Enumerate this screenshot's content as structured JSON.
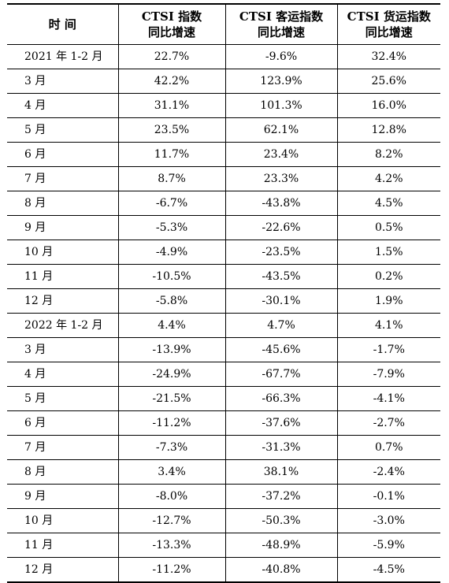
{
  "header": {
    "time_label": "时 间",
    "col1": [
      "CTSI 指数",
      "同比增速"
    ],
    "col2": [
      "CTSI 客运指数",
      "同比增速"
    ],
    "col3": [
      "CTSI 货运指数",
      "同比增速"
    ]
  },
  "rows": [
    [
      "2021 年 1-2 月",
      "22.7%",
      "-9.6%",
      "32.4%"
    ],
    [
      "3 月",
      "42.2%",
      "123.9%",
      "25.6%"
    ],
    [
      "4 月",
      "31.1%",
      "101.3%",
      "16.0%"
    ],
    [
      "5 月",
      "23.5%",
      "62.1%",
      "12.8%"
    ],
    [
      "6 月",
      "11.7%",
      "23.4%",
      "8.2%"
    ],
    [
      "7 月",
      "8.7%",
      "23.3%",
      "4.2%"
    ],
    [
      "8 月",
      "-6.7%",
      "-43.8%",
      "4.5%"
    ],
    [
      "9 月",
      "-5.3%",
      "-22.6%",
      "0.5%"
    ],
    [
      "10 月",
      "-4.9%",
      "-23.5%",
      "1.5%"
    ],
    [
      "11 月",
      "-10.5%",
      "-43.5%",
      "0.2%"
    ],
    [
      "12 月",
      "-5.8%",
      "-30.1%",
      "1.9%"
    ],
    [
      "2022 年 1-2 月",
      "4.4%",
      "4.7%",
      "4.1%"
    ],
    [
      "3 月",
      "-13.9%",
      "-45.6%",
      "-1.7%"
    ],
    [
      "4 月",
      "-24.9%",
      "-67.7%",
      "-7.9%"
    ],
    [
      "5 月",
      "-21.5%",
      "-66.3%",
      "-4.1%"
    ],
    [
      "6 月",
      "-11.2%",
      "-37.6%",
      "-2.7%"
    ],
    [
      "7 月",
      "-7.3%",
      "-31.3%",
      "0.7%"
    ],
    [
      "8 月",
      "3.4%",
      "38.1%",
      "-2.4%"
    ],
    [
      "9 月",
      "-8.0%",
      "-37.2%",
      "-0.1%"
    ],
    [
      "10 月",
      "-12.7%",
      "-50.3%",
      "-3.0%"
    ],
    [
      "11 月",
      "-13.3%",
      "-48.9%",
      "-5.9%"
    ],
    [
      "12 月",
      "-11.2%",
      "-40.8%",
      "-4.5%"
    ]
  ]
}
